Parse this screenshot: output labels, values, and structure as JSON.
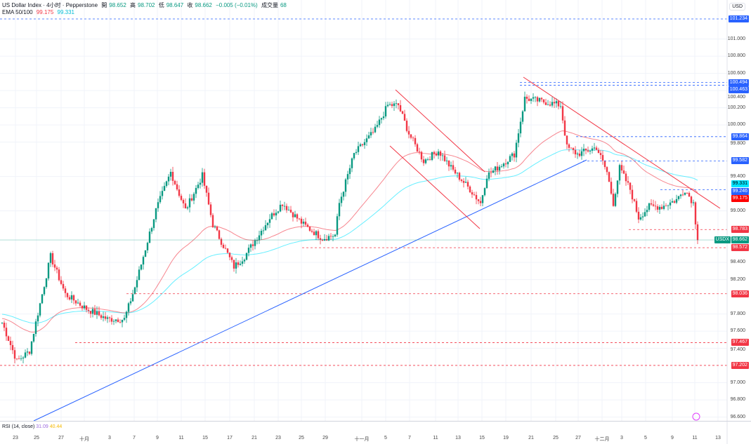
{
  "header": {
    "title": "US Dollar Index · 4小时 · Pepperstone",
    "open_label": "開",
    "open": "98.652",
    "high_label": "高",
    "high": "98.702",
    "low_label": "低",
    "low": "98.647",
    "close_label": "收",
    "close": "98.662",
    "change": "−0.005 (−0.01%)",
    "volume_label": "成交量",
    "volume": "68",
    "ema_label": "EMA 50/100",
    "ema50": "99.175",
    "ema100": "99.331"
  },
  "currency": "USD",
  "rsi": {
    "label": "RSI (14, close)",
    "value1": "31.09",
    "value2": "40.44"
  },
  "colors": {
    "up": "#089981",
    "down": "#f23645",
    "ema50": "#f23645",
    "ema100": "#00e5ff",
    "blue": "#2962ff"
  },
  "chart_data": {
    "type": "candlestick",
    "symbol": "USDX",
    "ylim": [
      96.6,
      101.3
    ],
    "y_ticks": [
      "101.000",
      "100.800",
      "100.600",
      "100.400",
      "100.200",
      "100.000",
      "99.800",
      "99.400",
      "99.000",
      "98.400",
      "98.200",
      "97.800",
      "97.600",
      "97.400",
      "97.000",
      "96.800",
      "96.600"
    ],
    "x_ticks": [
      "23",
      "25",
      "27",
      "十月",
      "3",
      "7",
      "9",
      "11",
      "15",
      "17",
      "21",
      "23",
      "25",
      "29",
      "十一月",
      "5",
      "7",
      "11",
      "13",
      "15",
      "19",
      "21",
      "25",
      "27",
      "十二月",
      "3",
      "5",
      "9",
      "11",
      "13"
    ],
    "close_path": [
      [
        0,
        97.7
      ],
      [
        7,
        97.25
      ],
      [
        13,
        97.37
      ],
      [
        23,
        98.47
      ],
      [
        30,
        98.03
      ],
      [
        40,
        97.86
      ],
      [
        50,
        97.74
      ],
      [
        58,
        97.74
      ],
      [
        63,
        98.11
      ],
      [
        73,
        99.01
      ],
      [
        80,
        99.45
      ],
      [
        87,
        99.01
      ],
      [
        95,
        99.41
      ],
      [
        100,
        98.84
      ],
      [
        110,
        98.35
      ],
      [
        115,
        98.47
      ],
      [
        127,
        98.92
      ],
      [
        133,
        99.09
      ],
      [
        143,
        98.84
      ],
      [
        152,
        98.68
      ],
      [
        158,
        98.72
      ],
      [
        160,
        99.09
      ],
      [
        167,
        99.66
      ],
      [
        177,
        99.94
      ],
      [
        183,
        100.23
      ],
      [
        188,
        100.23
      ],
      [
        193,
        99.9
      ],
      [
        200,
        99.58
      ],
      [
        207,
        99.7
      ],
      [
        213,
        99.5
      ],
      [
        222,
        99.25
      ],
      [
        227,
        99.09
      ],
      [
        230,
        99.41
      ],
      [
        237,
        99.54
      ],
      [
        243,
        99.66
      ],
      [
        248,
        100.31
      ],
      [
        257,
        100.27
      ],
      [
        265,
        100.23
      ],
      [
        268,
        99.74
      ],
      [
        273,
        99.66
      ],
      [
        282,
        99.74
      ],
      [
        287,
        99.45
      ],
      [
        290,
        99.09
      ],
      [
        293,
        99.5
      ],
      [
        298,
        99.25
      ],
      [
        302,
        98.92
      ],
      [
        307,
        99.05
      ],
      [
        313,
        99.05
      ],
      [
        320,
        99.13
      ],
      [
        324,
        99.25
      ],
      [
        328,
        99.09
      ],
      [
        330,
        98.66
      ]
    ],
    "last_price": "98.662",
    "blue_levels": [
      "101.234",
      "100.494",
      "100.463",
      "99.864",
      "99.582",
      "99.246"
    ],
    "red_levels": [
      "98.783",
      "98.572",
      "98.036",
      "97.467",
      "97.202"
    ],
    "ema50_last": "99.175",
    "ema100_last": "99.331"
  }
}
